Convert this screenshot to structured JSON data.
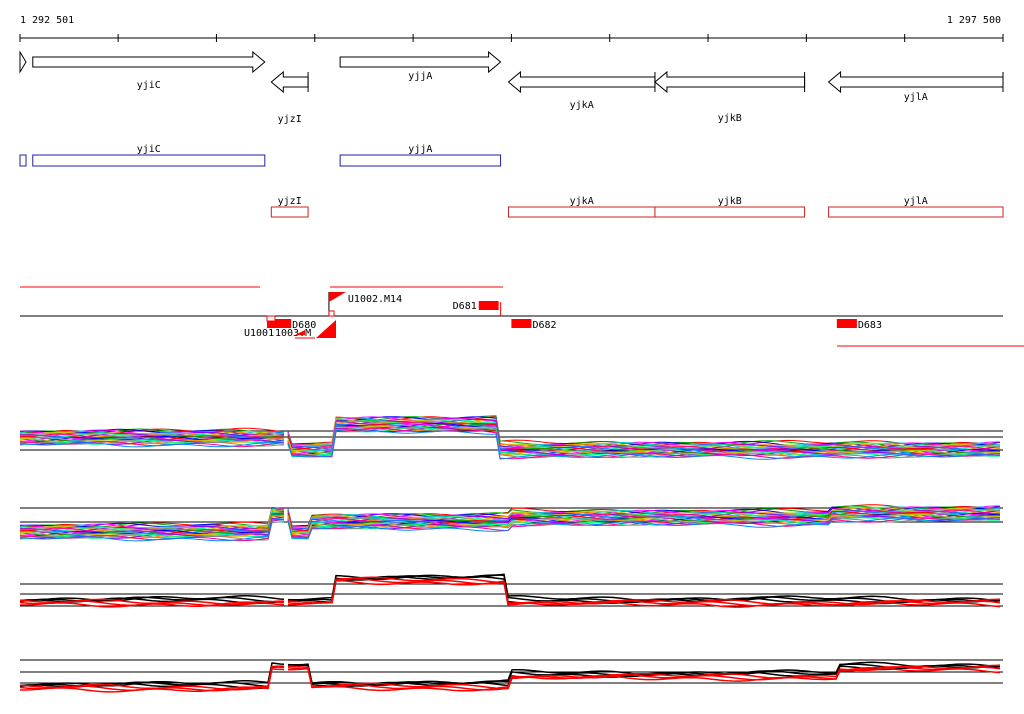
{
  "coordinates": {
    "start": "1 292 501",
    "end": "1 297 500"
  },
  "ruler": {
    "start_bp": 1292501,
    "end_bp": 1297500,
    "major_tick_bp": 1000,
    "minor_tick_bp": 500
  },
  "colors": {
    "cds_track": "#1f1fa8",
    "ncrna_track": "#cc2222",
    "feature_red": "#ff0000",
    "axis": "#000000"
  },
  "genes": [
    {
      "id": "gene-yjiC",
      "name": "yjiC",
      "start": 1292566,
      "end": 1293746,
      "strand": "+"
    },
    {
      "id": "gene-yjzI",
      "name": "yjzI",
      "start": 1293779,
      "end": 1293966,
      "strand": "-"
    },
    {
      "id": "gene-yjjA",
      "name": "yjjA",
      "start": 1294129,
      "end": 1294945,
      "strand": "+"
    },
    {
      "id": "gene-yjkA",
      "name": "yjkA",
      "start": 1294985,
      "end": 1295730,
      "strand": "-"
    },
    {
      "id": "gene-yjkB",
      "name": "yjkB",
      "start": 1295730,
      "end": 1296491,
      "strand": "-"
    },
    {
      "id": "gene-yjlA",
      "name": "yjlA",
      "start": 1296613,
      "end": 1297500,
      "strand": "-"
    }
  ],
  "cds_blocks": [
    {
      "name": "yjiC",
      "start": 1292566,
      "end": 1293746,
      "labeled": true
    },
    {
      "name": "yjjA",
      "start": 1294129,
      "end": 1294945,
      "labeled": true
    }
  ],
  "ncrna_blocks": [
    {
      "name": "yjzI",
      "start": 1293779,
      "end": 1293966
    },
    {
      "name": "yjkA",
      "start": 1294985,
      "end": 1295730
    },
    {
      "name": "yjkB",
      "start": 1295730,
      "end": 1296491
    },
    {
      "name": "yjlA",
      "start": 1296613,
      "end": 1297500
    }
  ],
  "transcription_units": [
    {
      "name": "U1002.M14",
      "start": 1294072,
      "end": 1294925
    },
    {
      "name": "U1001",
      "start": 1292501,
      "end": 1293719
    }
  ],
  "features": [
    {
      "name": "D680",
      "start": 1293757,
      "end": 1293880,
      "label": "D680"
    },
    {
      "name": "D681",
      "start": 1294834,
      "end": 1294935,
      "label": "D681"
    },
    {
      "name": "D682",
      "start": 1295000,
      "end": 1295102,
      "label": "D682"
    },
    {
      "name": "D683",
      "start": 1296655,
      "end": 1296757,
      "label": "D683"
    }
  ],
  "overlap_labels": {
    "left": "U1001",
    "right": "1003.M"
  },
  "expression_panels": [
    {
      "id": "panel-1",
      "kind": "multicolor"
    },
    {
      "id": "panel-2",
      "kind": "multicolor"
    },
    {
      "id": "panel-3",
      "kind": "summary"
    },
    {
      "id": "panel-4",
      "kind": "summary"
    }
  ]
}
